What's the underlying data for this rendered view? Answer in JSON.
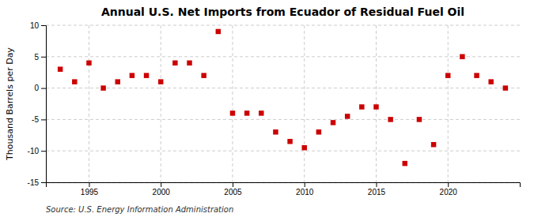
{
  "chart_data": {
    "type": "scatter",
    "title": "Annual U.S. Net Imports from Ecuador of Residual Fuel Oil",
    "ylabel": "Thousand Barrels per Day",
    "annotations": [
      "Source: U.S. Energy Information Administration"
    ],
    "x": [
      1993,
      1994,
      1995,
      1996,
      1997,
      1998,
      1999,
      2000,
      2001,
      2002,
      2003,
      2004,
      2005,
      2006,
      2007,
      2008,
      2009,
      2010,
      2011,
      2012,
      2013,
      2014,
      2015,
      2016,
      2017,
      2018,
      2019,
      2020,
      2021,
      2022,
      2023,
      2024
    ],
    "values": [
      3.0,
      1.0,
      4.0,
      0.0,
      1.0,
      2.0,
      2.0,
      1.0,
      4.0,
      4.0,
      2.0,
      9.0,
      -4.0,
      -4.0,
      -4.0,
      -7.0,
      -8.5,
      -9.5,
      -7.0,
      -5.5,
      -4.5,
      -3.0,
      -3.0,
      -5.0,
      -12.0,
      -5.0,
      -9.0,
      2.0,
      5.0,
      2.0,
      1.0,
      0.0
    ],
    "color": "#cc0000",
    "marker": "square",
    "xlim": [
      1992,
      2025
    ],
    "xticks": [
      1995,
      2000,
      2005,
      2010,
      2015,
      2020
    ],
    "ylim": [
      -15,
      10
    ],
    "yticks": [
      -15,
      -10,
      -5,
      0,
      5,
      10
    ],
    "grid": true
  }
}
